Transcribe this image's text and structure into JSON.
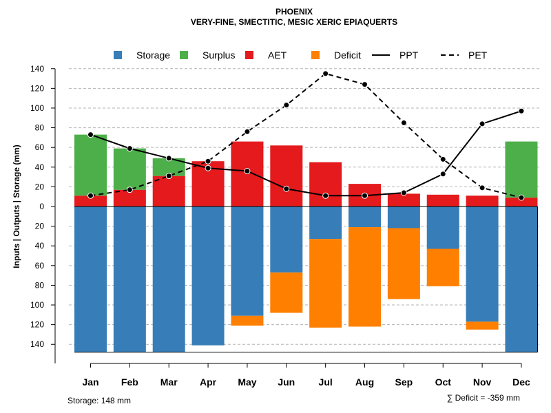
{
  "chart_data": {
    "type": "bar",
    "title": "PHOENIX",
    "subtitle": "VERY-FINE, SMECTITIC, MESIC XERIC EPIAQUERTS",
    "ylabel": "Inputs | Outputs | Storage    (mm)",
    "categories": [
      "Jan",
      "Feb",
      "Mar",
      "Apr",
      "May",
      "Jun",
      "Jul",
      "Aug",
      "Sep",
      "Oct",
      "Nov",
      "Dec"
    ],
    "y_ticks_positive": [
      "140",
      "120",
      "100",
      "80",
      "60",
      "40",
      "20",
      "0"
    ],
    "y_ticks_negative": [
      "20",
      "40",
      "60",
      "80",
      "100",
      "120",
      "140"
    ],
    "ylim": [
      -148,
      140
    ],
    "grid": true,
    "legend": [
      {
        "name": "Storage",
        "color": "#377EB8",
        "kind": "box"
      },
      {
        "name": "Surplus",
        "color": "#4DAF4A",
        "kind": "box"
      },
      {
        "name": "AET",
        "color": "#E41A1C",
        "kind": "box"
      },
      {
        "name": "Deficit",
        "color": "#FF7F00",
        "kind": "box"
      },
      {
        "name": "PPT",
        "color": "#000000",
        "kind": "solid"
      },
      {
        "name": "PET",
        "color": "#000000",
        "kind": "dashed"
      }
    ],
    "series": [
      {
        "name": "AET",
        "values": [
          11,
          17,
          31,
          46,
          66,
          62,
          45,
          23,
          13,
          12,
          11,
          9
        ]
      },
      {
        "name": "Surplus",
        "values": [
          62,
          42,
          18,
          0,
          0,
          0,
          0,
          0,
          0,
          0,
          0,
          57
        ]
      },
      {
        "name": "Storage",
        "values": [
          148,
          148,
          148,
          141,
          111,
          67,
          33,
          21,
          22,
          43,
          117,
          148
        ]
      },
      {
        "name": "Deficit",
        "values": [
          0,
          0,
          0,
          0,
          10,
          41,
          90,
          101,
          72,
          38,
          8,
          0
        ]
      },
      {
        "name": "PPT",
        "values": [
          73,
          59,
          49,
          39,
          36,
          18,
          11,
          11,
          14,
          33,
          84,
          97
        ]
      },
      {
        "name": "PET",
        "values": [
          11,
          17,
          31,
          46,
          76,
          103,
          135,
          124,
          85,
          48,
          19,
          9
        ]
      }
    ],
    "storage_note": "Storage: 148 mm",
    "deficit_note": "∑ Deficit = -359 mm"
  }
}
